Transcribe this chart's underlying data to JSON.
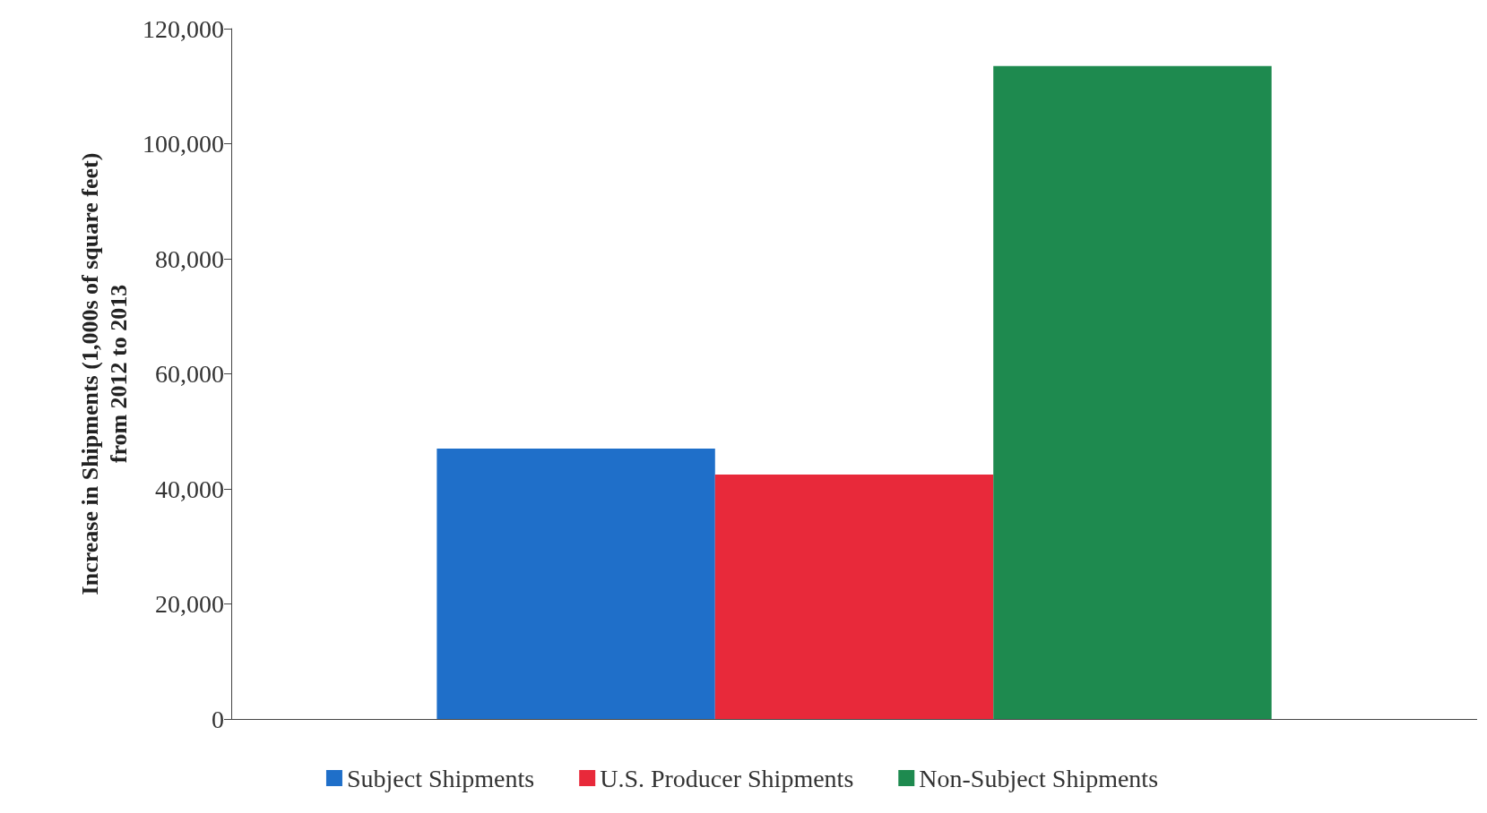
{
  "chart_data": {
    "type": "bar",
    "ylabel": "Increase in Shipments (1,000s of square feet)\nfrom 2012 to 2013",
    "categories": [
      null
    ],
    "series": [
      {
        "name": "Subject Shipments",
        "color": "#1f6fc9",
        "values": [
          47000
        ]
      },
      {
        "name": "U.S. Producer Shipments",
        "color": "#e8293a",
        "values": [
          42500
        ]
      },
      {
        "name": "Non-Subject Shipments",
        "color": "#1e8a4f",
        "values": [
          113500
        ]
      }
    ],
    "ylim": [
      0,
      120000
    ],
    "yticks": [
      0,
      {
        "value": 20000,
        "label": "20,000"
      },
      {
        "value": 40000,
        "label": "40,000"
      },
      {
        "value": 60000,
        "label": "60,000"
      },
      {
        "value": 80000,
        "label": "80,000"
      },
      {
        "value": 100000,
        "label": "100,000"
      },
      {
        "value": 120000,
        "label": "120,000"
      }
    ],
    "grid": false,
    "legend": "bottom"
  }
}
